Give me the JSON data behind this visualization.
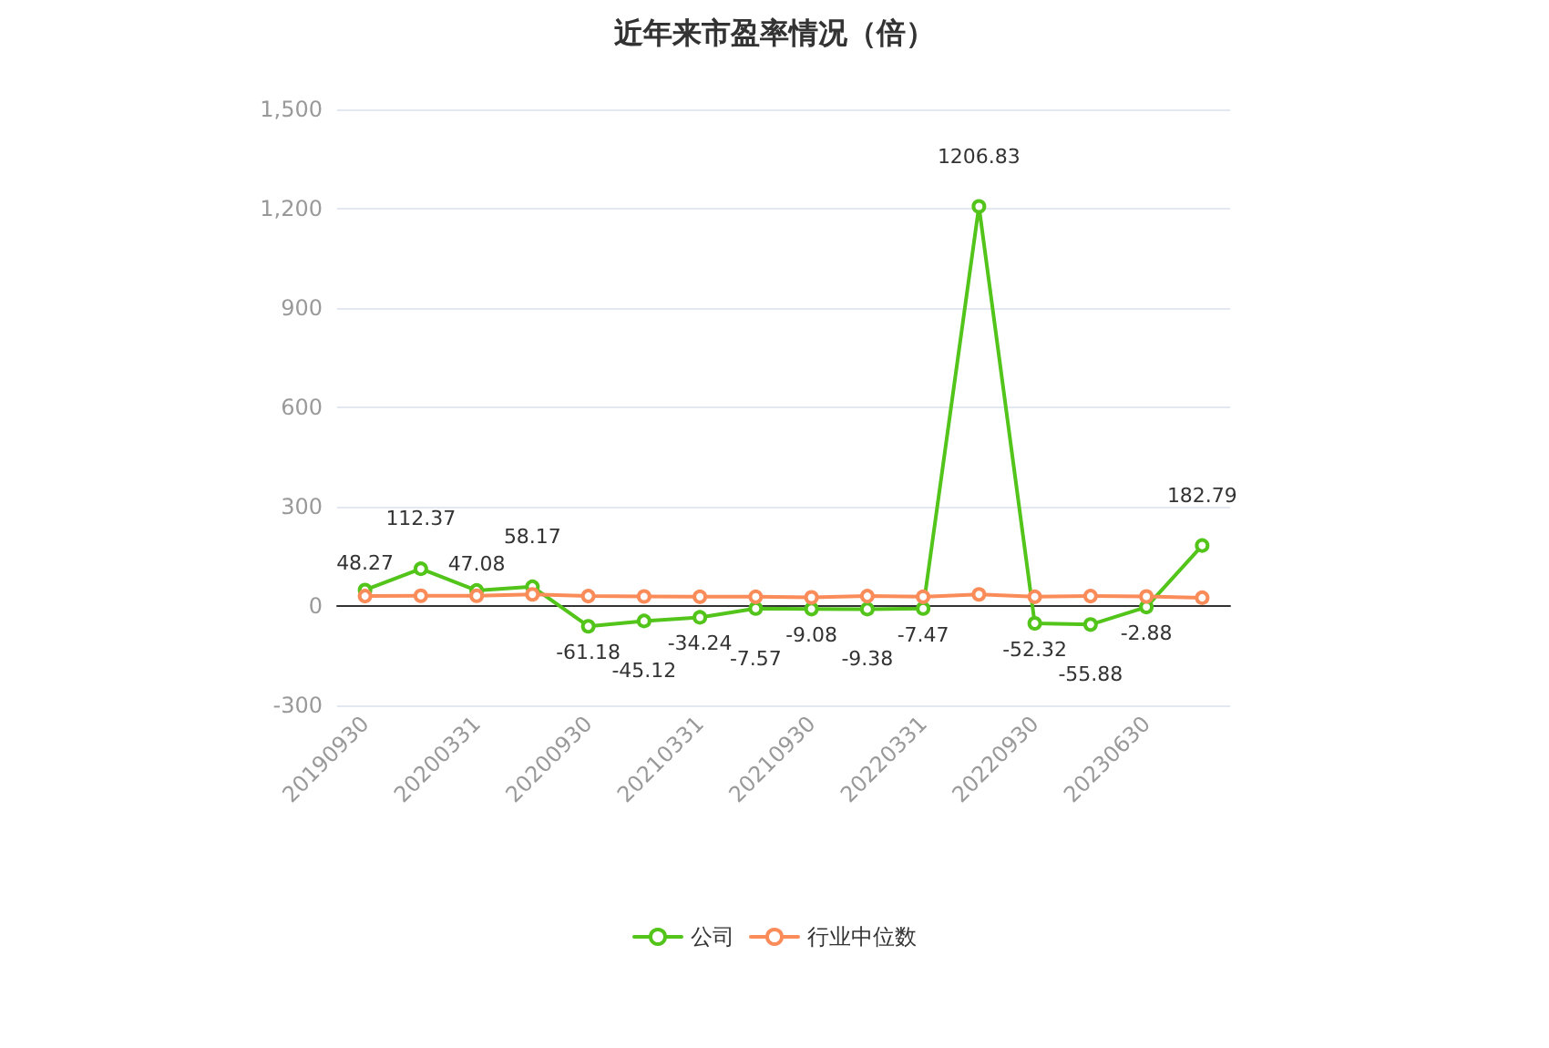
{
  "chart_data": {
    "type": "line",
    "title": "近年来市盈率情况（倍）",
    "categories": [
      "20190930",
      null,
      "20200331",
      null,
      "20200930",
      null,
      "20210331",
      null,
      "20210930",
      null,
      "20220331",
      null,
      "20220930",
      null,
      "20230630",
      null
    ],
    "series": [
      {
        "name": "公司",
        "color": "#52c41a",
        "values": [
          48.27,
          112.37,
          47.08,
          58.17,
          -61.18,
          -45.12,
          -34.24,
          -7.57,
          -9.08,
          -9.38,
          -7.47,
          1206.83,
          -52.32,
          -55.88,
          -2.88,
          182.79
        ],
        "value_labels": [
          "48.27",
          "112.37",
          "47.08",
          "58.17",
          "-61.18",
          "-45.12",
          "-34.24",
          "-7.57",
          "-9.08",
          "-9.38",
          "-7.47",
          "1206.83",
          "-52.32",
          "-55.88",
          "-2.88",
          "182.79"
        ]
      },
      {
        "name": "行业中位数",
        "color": "#fa8c5a",
        "values": [
          30,
          31,
          31,
          35,
          30,
          29,
          28,
          28,
          26,
          30,
          28,
          35,
          28,
          30,
          29,
          25
        ]
      }
    ],
    "ylim": [
      -300,
      1500
    ],
    "yticks": [
      {
        "value": -300,
        "label": "-300"
      },
      0,
      300,
      600,
      900,
      {
        "value": 1200,
        "label": "1,200"
      },
      {
        "value": 1500,
        "label": "1,500"
      }
    ],
    "grid": "y",
    "legend": "bottom",
    "marker": "circle",
    "line_style": "solid"
  }
}
